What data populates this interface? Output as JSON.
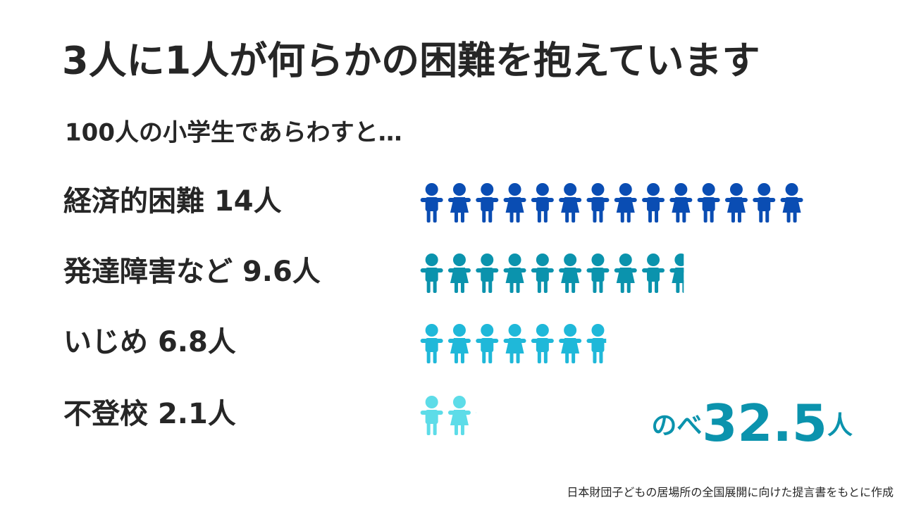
{
  "chart_data": {
    "type": "pictogram",
    "title": "3人に1人が何らかの困難を抱えています",
    "subtitle": "100人の小学生であらわすと…",
    "categories": [
      "経済的困難",
      "発達障害など",
      "いじめ",
      "不登校"
    ],
    "series": [
      {
        "values": [
          14,
          9.6,
          6.8,
          2.1
        ],
        "value_labels": [
          "14人",
          "9.6人",
          "6.8人",
          "2.1人"
        ],
        "colors": [
          "#0a4db3",
          "#0b93ad",
          "#1fb8d9",
          "#5ddce8"
        ]
      }
    ],
    "total_prefix": "のべ",
    "total": 32.5,
    "total_unit": "人",
    "total_color": "#0b93ad",
    "source": "日本財団子どもの居場所の全国展開に向けた提言書をもとに作成"
  }
}
